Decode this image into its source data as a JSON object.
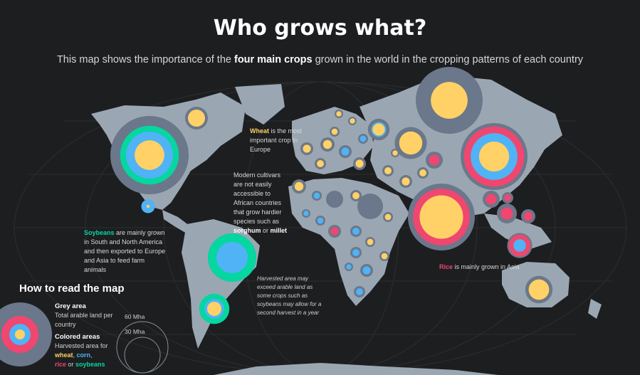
{
  "header": {
    "title": "Who grows what?",
    "subtitle_pre": "This map shows the importance of the ",
    "subtitle_bold": "four main crops",
    "subtitle_post": " grown in the world in the cropping patterns of each country"
  },
  "annotations": {
    "wheat": {
      "highlight": "Wheat",
      "text": " is the most important crop in Europe"
    },
    "africa": {
      "text": "Modern cultivars are not easily accessible to African countries that grow hardier species such as ",
      "b1": "sorghum",
      "mid": " or ",
      "b2": "millet"
    },
    "soybeans": {
      "highlight": "Soybeans",
      "text": " are mainly grown in South and North America and then exported to Europe and Asia to feed farm animals"
    },
    "harvest": {
      "text": "Harvested area may exceed arable land as some crops such as soybeans may allow for a second harvest in a year"
    },
    "rice": {
      "highlight": "Rice",
      "text": " is mainly grown in Asia"
    }
  },
  "legend": {
    "title": "How to read the map",
    "grey_head": "Grey area",
    "grey_text": "Total arable land per country",
    "colored_head": "Colored areas",
    "colored_text": "Harvested area for ",
    "crop_wheat": "wheat",
    "crop_corn": "corn",
    "crop_rice": "rice",
    "crop_soy": "soybeans",
    "sep1": ", ",
    "sep2": ",",
    "sep3": " or ",
    "size_large": "60 Mha",
    "size_small": "30 Mha"
  },
  "colors": {
    "background": "#1d1e20",
    "land": "#9aa7b3",
    "arable": "#6b778a",
    "wheat": "#ffd166",
    "corn": "#4fb3f6",
    "rice": "#ef476f",
    "soybeans": "#06d6a0"
  },
  "country_glyphs": [
    {
      "country": "USA",
      "arable": 1,
      "soy": 0.75,
      "corn": 0.6,
      "wheat": 0.38
    },
    {
      "country": "Canada",
      "arable": 0.8,
      "soy": 0.35,
      "wheat": 0.6
    },
    {
      "country": "Mexico",
      "arable": 0.5,
      "corn": 0.5,
      "wheat": 0.12
    },
    {
      "country": "Brazil",
      "arable": 1,
      "soy": 1,
      "corn": 0.65,
      "rice": 0.2
    },
    {
      "country": "Argentina",
      "arable": 0.8,
      "soy": 0.85,
      "corn": 0.55,
      "wheat": 0.4
    },
    {
      "country": "Russia",
      "arable": 1,
      "wheat": 0.55
    },
    {
      "country": "India",
      "arable": 1,
      "rice": 0.85,
      "wheat": 0.65
    },
    {
      "country": "China",
      "arable": 1,
      "rice": 0.9,
      "corn": 0.7,
      "wheat": 0.45
    },
    {
      "country": "Kazakhstan",
      "arable": 0.9,
      "wheat": 0.65
    },
    {
      "country": "Australia",
      "arable": 0.8,
      "wheat": 0.6
    },
    {
      "country": "Ukraine",
      "arable": 0.8,
      "corn": 0.55,
      "wheat": 0.45
    },
    {
      "country": "Indonesia",
      "arable": 0.8,
      "rice": 0.7,
      "corn": 0.4
    }
  ]
}
